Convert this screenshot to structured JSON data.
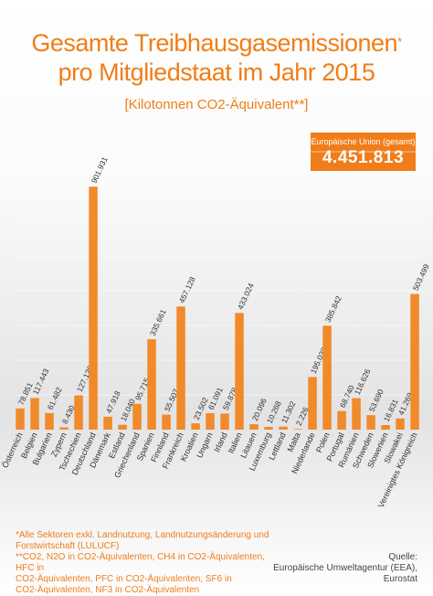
{
  "header": {
    "title_line1": "Gesamte Treibhausgasemissionen",
    "title_mark": "*",
    "title_line2": "pro Mitgliedstaat im Jahr 2015",
    "subtitle": "[Kilotonnen CO2-Äquivalent**]"
  },
  "eu_total": {
    "label": "Europäische Union (gesamt)",
    "value": "4.451.813"
  },
  "footnotes": {
    "line1": "*Alle Sektoren exkl. Landnutzung, Landnutzungsänderung und",
    "line2": "Forstwirtschaft (LULUCF)",
    "line3": "**CO2, N2O in CO2-Äquivalenten, CH4 in CO2-Äquivalenten, HFC in",
    "line4": "CO2-Äquivalenten, PFC in CO2-Äquivalenten, SF6 in",
    "line5": "CO2-Äquivalenten, NF3 in CO2-Äquivalenten"
  },
  "source": {
    "line1": "Quelle:",
    "line2": "Europäische Umweltagentur (EEA),",
    "line3": "Eurostat"
  },
  "colors": {
    "accent": "#f07d19",
    "bar": "#f08a2a"
  },
  "chart_data": {
    "type": "bar",
    "title": "Gesamte Treibhausgasemissionen* pro Mitgliedstaat im Jahr 2015",
    "subtitle": "[Kilotonnen CO2-Äquivalent**]",
    "xlabel": "",
    "ylabel": "",
    "ylim": [
      0,
      950000
    ],
    "grid": true,
    "categories": [
      "Österreich",
      "Belgien",
      "Bulgarien",
      "Zypern",
      "Tschechien",
      "Deutschland",
      "Dänemark",
      "Estland",
      "Griechenland",
      "Spanien",
      "Finnland",
      "Frankreich",
      "Kroatien",
      "Ungarn",
      "Irland",
      "Italien",
      "Litauen",
      "Luxemburg",
      "Lettland",
      "Malta",
      "Niederlande",
      "Polen",
      "Portugal",
      "Rumänien",
      "Schweden",
      "Slowenien",
      "Slowakei",
      "Vereinigtes Königreich"
    ],
    "values": [
      78851,
      117443,
      61482,
      8430,
      127126,
      901931,
      47918,
      18040,
      95715,
      335661,
      55507,
      457128,
      23502,
      61091,
      59878,
      433024,
      20096,
      10268,
      11302,
      2226,
      195038,
      385842,
      68740,
      116626,
      53690,
      16831,
      41269,
      503499
    ],
    "value_labels": [
      "78.851",
      "117.443",
      "61.482",
      "8.430",
      "127.126",
      "901.931",
      "47.918",
      "18.040",
      "95.715",
      "335.661",
      "55.507",
      "457.128",
      "23.502",
      "61.091",
      "59.878",
      "433.024",
      "20.096",
      "10.268",
      "11.302",
      "2.226",
      "195.038",
      "385.842",
      "68.740",
      "116.626",
      "53.690",
      "16.831",
      "41.269",
      "503.499"
    ]
  }
}
